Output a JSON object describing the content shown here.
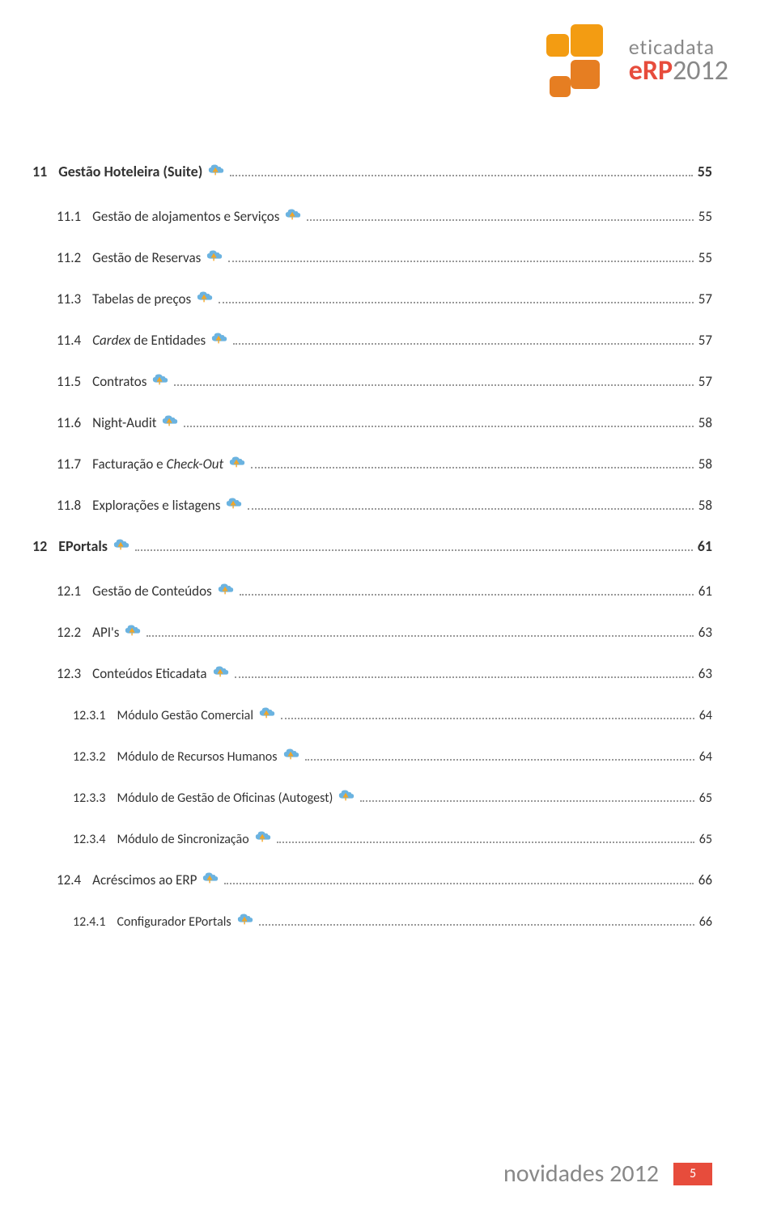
{
  "logo": {
    "brand": "eticadata",
    "product": "eRP",
    "year": "2012",
    "colors": {
      "orange1": "#f39c12",
      "orange2": "#e67e22",
      "red": "#e74c3c",
      "gray": "#888888"
    }
  },
  "icon_colors": {
    "cloud": "#6bb3e0",
    "arrow": "#f5a623"
  },
  "toc": [
    {
      "level": "section",
      "num": "11",
      "label": "Gestão Hoteleira (Suite)",
      "page": "55"
    },
    {
      "level": "sub",
      "num": "11.1",
      "label": "Gestão de alojamentos e Serviços",
      "page": "55"
    },
    {
      "level": "sub",
      "num": "11.2",
      "label": "Gestão de Reservas",
      "page": "55"
    },
    {
      "level": "sub",
      "num": "11.3",
      "label": "Tabelas de preços",
      "page": "57"
    },
    {
      "level": "sub",
      "num": "11.4",
      "label_html": "<em>Cardex</em> de Entidades",
      "page": "57"
    },
    {
      "level": "sub",
      "num": "11.5",
      "label": "Contratos",
      "page": "57"
    },
    {
      "level": "sub",
      "num": "11.6",
      "label": "Night-Audit",
      "page": "58"
    },
    {
      "level": "sub",
      "num": "11.7",
      "label_html": "Facturação e <em>Check-Out</em>",
      "page": "58"
    },
    {
      "level": "sub",
      "num": "11.8",
      "label": "Explorações e listagens",
      "page": "58"
    },
    {
      "level": "section",
      "num": "12",
      "label": "EPortals",
      "page": "61"
    },
    {
      "level": "sub",
      "num": "12.1",
      "label": "Gestão de Conteúdos",
      "page": "61"
    },
    {
      "level": "sub",
      "num": "12.2",
      "label": "API's",
      "page": "63"
    },
    {
      "level": "sub",
      "num": "12.3",
      "label": "Conteúdos Eticadata",
      "page": "63"
    },
    {
      "level": "subsub",
      "num": "12.3.1",
      "label": "Módulo Gestão Comercial",
      "page": "64"
    },
    {
      "level": "subsub",
      "num": "12.3.2",
      "label": "Módulo de Recursos Humanos",
      "page": "64"
    },
    {
      "level": "subsub",
      "num": "12.3.3",
      "label": "Módulo de Gestão de Oficinas (Autogest)",
      "page": "65"
    },
    {
      "level": "subsub",
      "num": "12.3.4",
      "label": "Módulo de Sincronização",
      "page": "65"
    },
    {
      "level": "sub",
      "num": "12.4",
      "label": "Acréscimos ao ERP",
      "page": "66"
    },
    {
      "level": "subsub",
      "num": "12.4.1",
      "label": "Configurador EPortals",
      "page": "66"
    }
  ],
  "footer": {
    "title": "novidades 2012",
    "page": "5"
  }
}
